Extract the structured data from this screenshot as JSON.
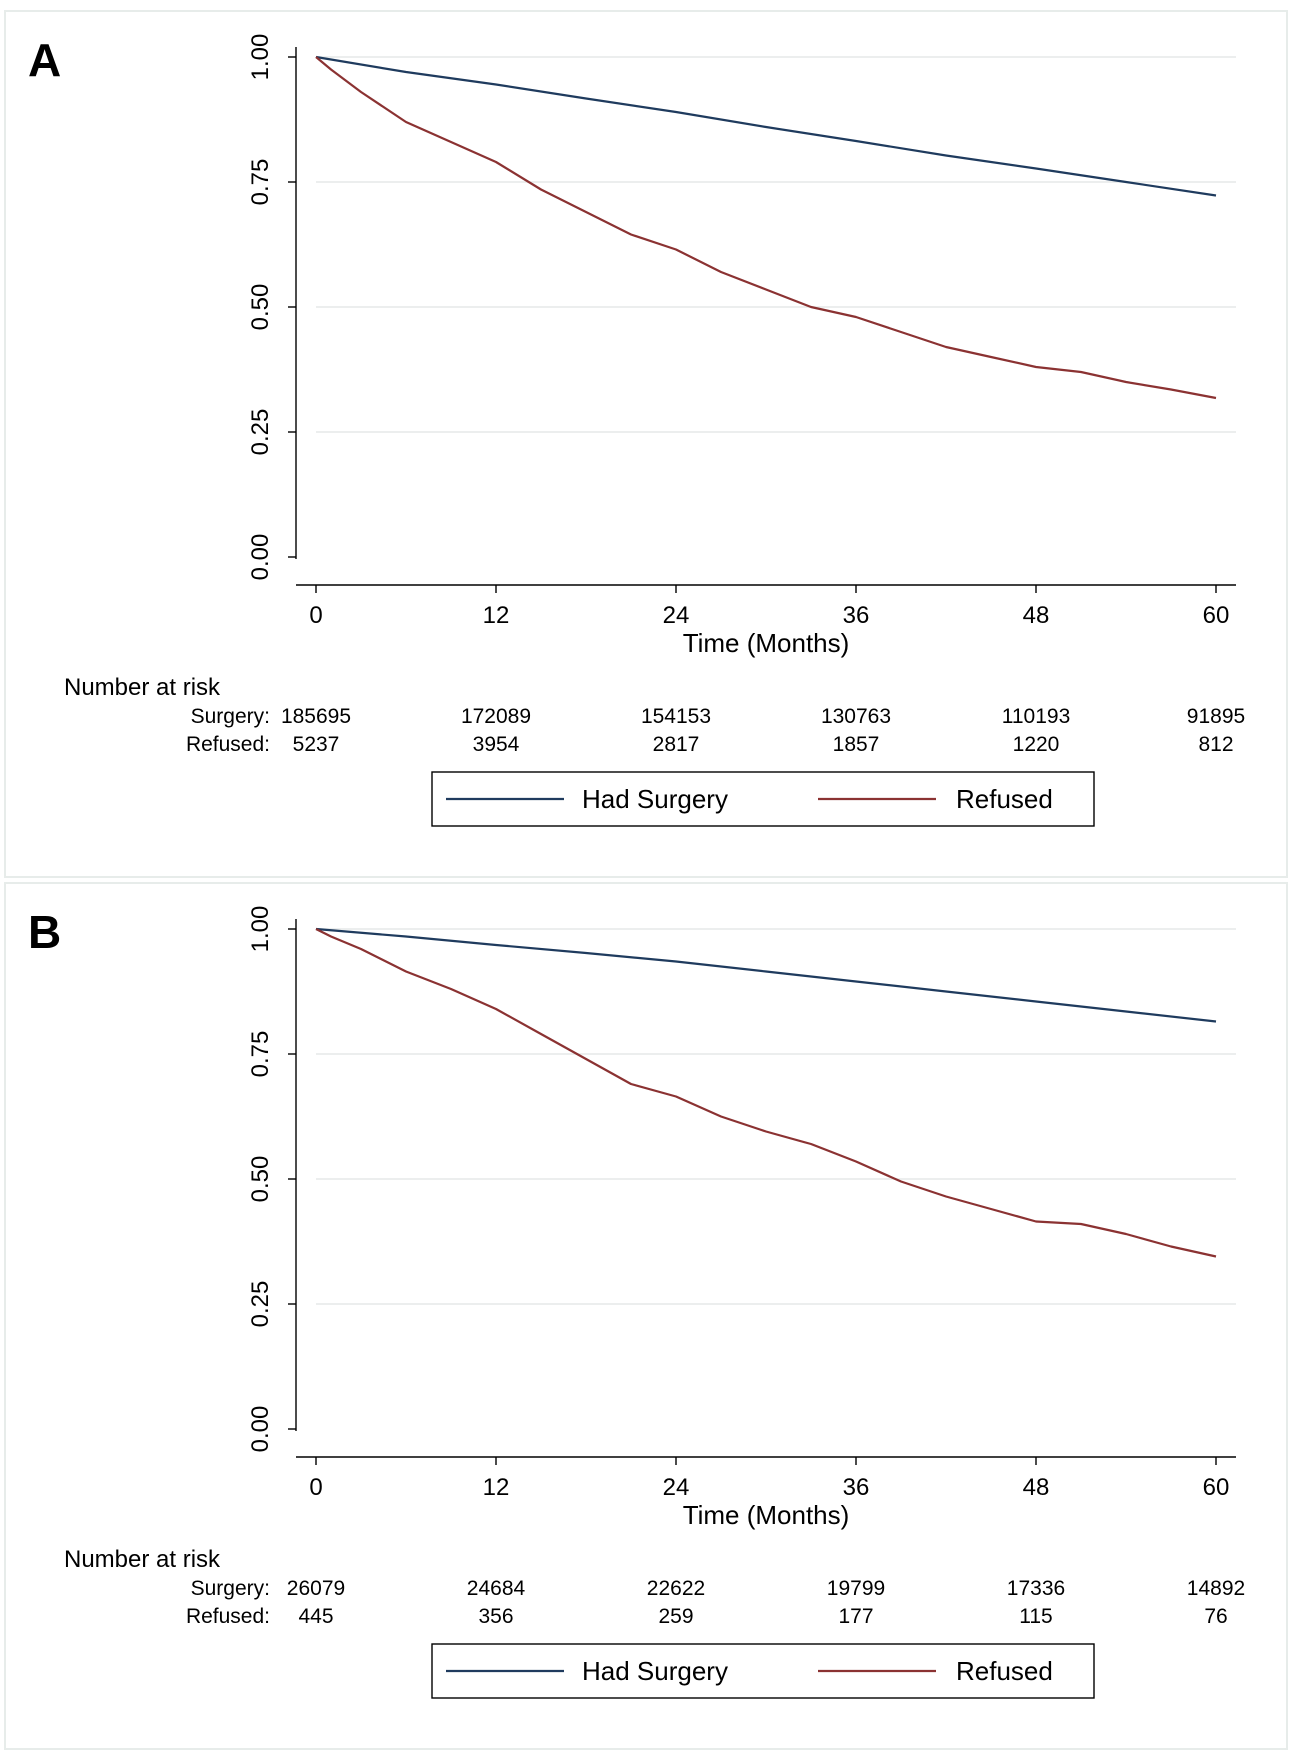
{
  "chart_data": [
    {
      "panel_label": "A",
      "type": "line",
      "xlabel": "Time (Months)",
      "ylabel": "",
      "xlim": [
        0,
        60
      ],
      "ylim": [
        0,
        1
      ],
      "xticks": [
        "0",
        "12",
        "24",
        "36",
        "48",
        "60"
      ],
      "yticks": [
        "0.00",
        "0.25",
        "0.50",
        "0.75",
        "1.00"
      ],
      "grid": "horizontal",
      "series": [
        {
          "name": "Had Surgery",
          "color": "#1f3b5e",
          "x": [
            0,
            6,
            12,
            18,
            24,
            30,
            36,
            42,
            48,
            54,
            60
          ],
          "y": [
            1.0,
            0.97,
            0.945,
            0.917,
            0.89,
            0.86,
            0.832,
            0.803,
            0.777,
            0.75,
            0.723
          ]
        },
        {
          "name": "Refused",
          "color": "#8b3232",
          "x": [
            0,
            1,
            3,
            6,
            9,
            12,
            15,
            18,
            21,
            24,
            27,
            30,
            33,
            36,
            39,
            42,
            45,
            48,
            51,
            54,
            57,
            60
          ],
          "y": [
            1.0,
            0.975,
            0.93,
            0.87,
            0.83,
            0.79,
            0.735,
            0.69,
            0.645,
            0.615,
            0.57,
            0.535,
            0.5,
            0.48,
            0.45,
            0.42,
            0.4,
            0.38,
            0.37,
            0.35,
            0.335,
            0.318
          ]
        }
      ],
      "risk_table": {
        "title": "Number at risk",
        "rows": [
          {
            "label": "Surgery:",
            "values": [
              "185695",
              "172089",
              "154153",
              "130763",
              "110193",
              "91895"
            ]
          },
          {
            "label": "Refused:",
            "values": [
              "5237",
              "3954",
              "2817",
              "1857",
              "1220",
              "812"
            ]
          }
        ]
      },
      "legend": {
        "position": "bottom",
        "entries": [
          "Had Surgery",
          "Refused"
        ]
      }
    },
    {
      "panel_label": "B",
      "type": "line",
      "xlabel": "Time (Months)",
      "ylabel": "",
      "xlim": [
        0,
        60
      ],
      "ylim": [
        0,
        1
      ],
      "xticks": [
        "0",
        "12",
        "24",
        "36",
        "48",
        "60"
      ],
      "yticks": [
        "0.00",
        "0.25",
        "0.50",
        "0.75",
        "1.00"
      ],
      "grid": "horizontal",
      "series": [
        {
          "name": "Had Surgery",
          "color": "#1f3b5e",
          "x": [
            0,
            6,
            12,
            18,
            24,
            30,
            36,
            42,
            48,
            54,
            60
          ],
          "y": [
            1.0,
            0.985,
            0.968,
            0.952,
            0.935,
            0.915,
            0.895,
            0.875,
            0.855,
            0.835,
            0.815
          ]
        },
        {
          "name": "Refused",
          "color": "#8b3232",
          "x": [
            0,
            1,
            3,
            6,
            9,
            12,
            15,
            18,
            21,
            24,
            27,
            30,
            33,
            36,
            39,
            42,
            45,
            48,
            51,
            54,
            57,
            60
          ],
          "y": [
            1.0,
            0.985,
            0.96,
            0.915,
            0.88,
            0.84,
            0.79,
            0.74,
            0.69,
            0.665,
            0.625,
            0.595,
            0.57,
            0.535,
            0.495,
            0.465,
            0.44,
            0.415,
            0.41,
            0.39,
            0.365,
            0.345
          ]
        }
      ],
      "risk_table": {
        "title": "Number at risk",
        "rows": [
          {
            "label": "Surgery:",
            "values": [
              "26079",
              "24684",
              "22622",
              "19799",
              "17336",
              "14892"
            ]
          },
          {
            "label": "Refused:",
            "values": [
              "445",
              "356",
              "259",
              "177",
              "115",
              "76"
            ]
          }
        ]
      },
      "legend": {
        "position": "bottom",
        "entries": [
          "Had Surgery",
          "Refused"
        ]
      }
    }
  ]
}
